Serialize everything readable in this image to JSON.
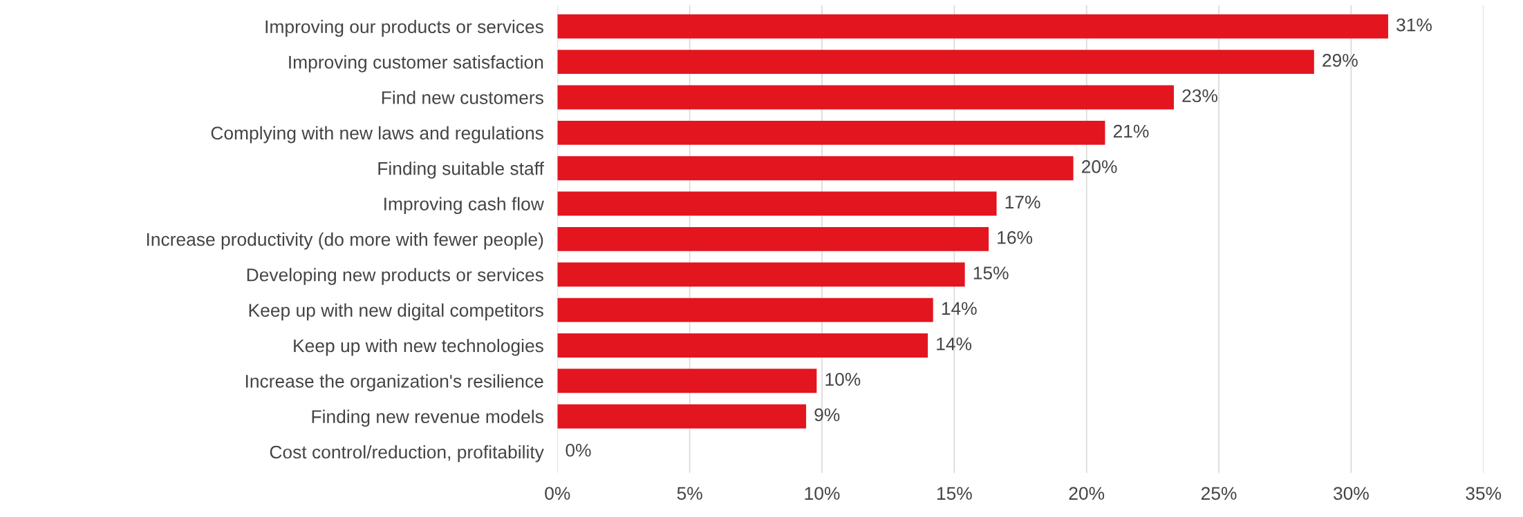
{
  "chart_data": {
    "type": "bar",
    "orientation": "horizontal",
    "categories": [
      "Improving our products or services",
      "Improving customer satisfaction",
      "Find new customers",
      "Complying with new laws and regulations",
      "Finding suitable staff",
      "Improving cash flow",
      "Increase productivity (do more with fewer people)",
      "Developing new products or services",
      "Keep up with new digital competitors",
      "Keep up with new technologies",
      "Increase the organization's resilience",
      "Finding new revenue models",
      "Cost control/reduction, profitability"
    ],
    "values": [
      31.4,
      28.6,
      23.3,
      20.7,
      19.5,
      16.6,
      16.3,
      15.4,
      14.2,
      14.0,
      9.8,
      9.4,
      0
    ],
    "value_labels": [
      "31%",
      "29%",
      "23%",
      "21%",
      "20%",
      "17%",
      "16%",
      "15%",
      "14%",
      "14%",
      "10%",
      "9%",
      "0%"
    ],
    "color": "#e3151f",
    "xlim": [
      0,
      35
    ],
    "xticks": [
      {
        "value": 0,
        "label": "0%"
      },
      {
        "value": 5,
        "label": "5%"
      },
      {
        "value": 10,
        "label": "10%"
      },
      {
        "value": 15,
        "label": "15%"
      },
      {
        "value": 20,
        "label": "20%"
      },
      {
        "value": 25,
        "label": "25%"
      },
      {
        "value": 30,
        "label": "30%"
      },
      {
        "value": 35,
        "label": "35%"
      }
    ],
    "grid": "x",
    "legend": false
  }
}
